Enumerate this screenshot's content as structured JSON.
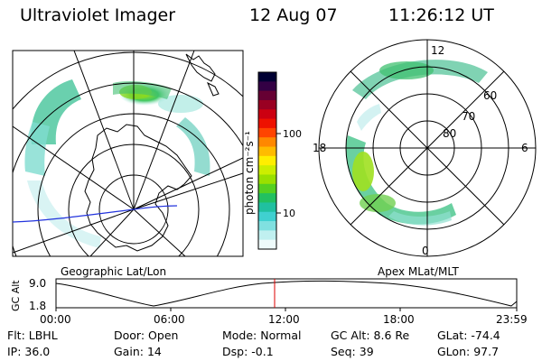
{
  "header": {
    "app_title": "Ultraviolet Imager",
    "date": "12 Aug 07",
    "time": "11:26:12 UT"
  },
  "left_panel": {
    "caption": "Geographic Lat/Lon"
  },
  "right_panel": {
    "caption": "Apex MLat/MLT",
    "mlt_labels": {
      "top": "12",
      "bottom": "0",
      "left": "18",
      "right": "6"
    },
    "lat_labels": [
      "60",
      "70",
      "80"
    ]
  },
  "colorbar": {
    "unit_label": "photon cm⁻²s⁻¹",
    "tick_labels": [
      "100",
      "10"
    ],
    "colors": [
      "#000033",
      "#330044",
      "#660033",
      "#990022",
      "#cc0011",
      "#ee1100",
      "#ff4400",
      "#ff8800",
      "#ffbb00",
      "#ffee00",
      "#ccee00",
      "#99e000",
      "#55d020",
      "#22c060",
      "#20c0a0",
      "#40d0d0",
      "#80e0e0",
      "#c0f0f0",
      "#eefafa"
    ]
  },
  "timeline": {
    "axis_label": "GC Alt",
    "y_ticks": [
      "9.0",
      "1.8"
    ],
    "x_ticks": [
      "00:00",
      "06:00",
      "12:00",
      "18:00",
      "23:59"
    ],
    "marker_color": "#dd0000"
  },
  "footer": {
    "filter": {
      "label": "Flt:",
      "value": "LBHL"
    },
    "ip": {
      "label": "IP:",
      "value": "36.0"
    },
    "door": {
      "label": "Door:",
      "value": "Open"
    },
    "gain": {
      "label": "Gain:",
      "value": "14"
    },
    "mode": {
      "label": "Mode:",
      "value": "Normal"
    },
    "dsp": {
      "label": "Dsp:",
      "value": "-0.1"
    },
    "gc_alt": {
      "label": "GC Alt:",
      "value": "8.6 Re"
    },
    "seq": {
      "label": "Seq:",
      "value": "39"
    },
    "glat": {
      "label": "GLat:",
      "value": "-74.4"
    },
    "glon": {
      "label": "GLon:",
      "value": "97.7"
    }
  }
}
